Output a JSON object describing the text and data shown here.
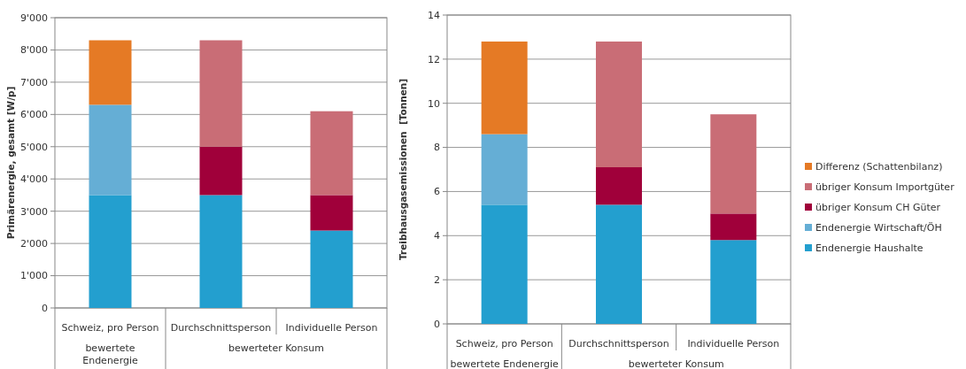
{
  "chart_data": [
    {
      "type": "bar",
      "stacked": true,
      "ylabel": "Primärenergie, gesamt [W/p]",
      "categories": [
        "Schweiz, pro Person",
        "Durchschnittsperson",
        "Individuelle Person"
      ],
      "series": [
        {
          "color": "#239fcf",
          "values": [
            3500,
            3500,
            2400
          ]
        },
        {
          "color": "#65aed5",
          "values": [
            2800,
            null,
            null
          ]
        },
        {
          "color": "#a0003a",
          "values": [
            null,
            1500,
            1100
          ]
        },
        {
          "color": "#c96d76",
          "values": [
            null,
            3300,
            2600
          ]
        },
        {
          "color": "#e57a25",
          "values": [
            2000,
            null,
            null
          ]
        }
      ],
      "ylim": [
        0,
        9000
      ],
      "yticks": [
        0,
        {
          "value": 1000,
          "label": "1'000"
        },
        {
          "value": 2000,
          "label": "2'000"
        },
        {
          "value": 3000,
          "label": "3'000"
        },
        {
          "value": 4000,
          "label": "4'000"
        },
        {
          "value": 5000,
          "label": "5'000"
        },
        {
          "value": 6000,
          "label": "6'000"
        },
        {
          "value": 7000,
          "label": "7'000"
        },
        {
          "value": 8000,
          "label": "8'000"
        },
        {
          "value": 9000,
          "label": "9'000"
        }
      ],
      "grid": "y",
      "legend": false,
      "annotations": [
        "bewertete Endenergie",
        "bewerteter Konsum"
      ]
    },
    {
      "type": "bar",
      "stacked": true,
      "ylabel": "Treibhausgasemissionen  [Tonnen]",
      "categories": [
        "Schweiz, pro Person",
        "Durchschnittsperson",
        "Individuelle Person"
      ],
      "series": [
        {
          "name": "Endenergie Haushalte",
          "color": "#239fcf",
          "values": [
            5.4,
            5.4,
            3.8
          ]
        },
        {
          "name": "Endenergie Wirtschaft/ÖH",
          "color": "#65aed5",
          "values": [
            3.2,
            null,
            null
          ]
        },
        {
          "name": "übriger Konsum CH Güter",
          "color": "#a0003a",
          "values": [
            null,
            1.7,
            1.2
          ]
        },
        {
          "name": "übriger Konsum Importgüter",
          "color": "#c96d76",
          "values": [
            null,
            5.7,
            4.5
          ]
        },
        {
          "name": "Differenz (Schattenbilanz)",
          "color": "#e57a25",
          "values": [
            4.2,
            null,
            null
          ]
        }
      ],
      "ylim": [
        0,
        14
      ],
      "yticks": [
        0,
        2,
        4,
        6,
        8,
        10,
        12,
        14
      ],
      "grid": "y",
      "legend": "right",
      "annotations": [
        "bewertete Endenergie",
        "bewerteter Konsum"
      ]
    }
  ]
}
